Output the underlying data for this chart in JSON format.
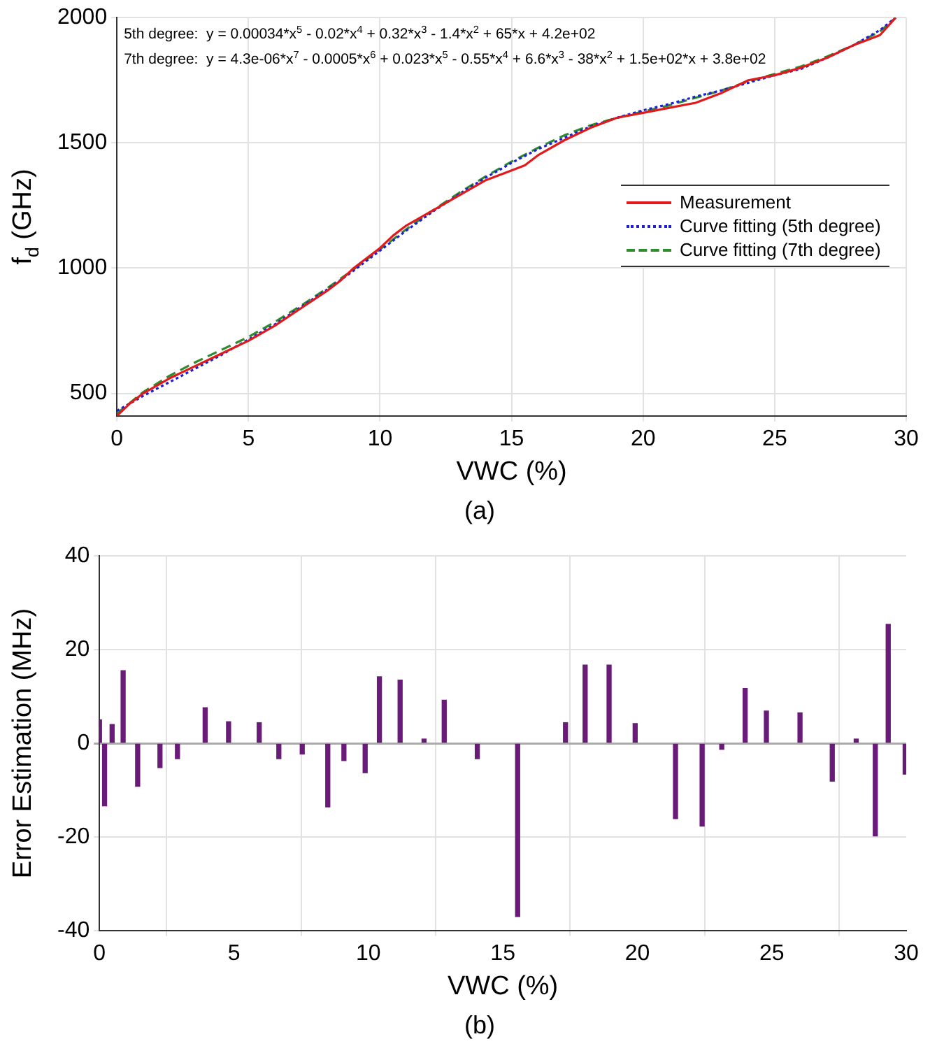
{
  "chart_data": [
    {
      "type": "line",
      "title": "(a)",
      "xlabel": "VWC (%)",
      "ylabel": "f$_{d}$ (GHz)",
      "xlim": [
        0,
        30
      ],
      "xticks": [
        0,
        5,
        10,
        15,
        20,
        25,
        30
      ],
      "ylim": [
        410,
        2000
      ],
      "yticks": [
        500,
        1000,
        1500,
        2000
      ],
      "grid": true,
      "legend": "right",
      "annotations": [
        "5th degree:  y = 0.00034*x$^{5}$ - 0.02*x$^{4}$ + 0.32*x$^{3}$ - 1.4*x$^{2}$ + 65*x + 4.2e+02",
        "7th degree:  y = 4.3e-06*x$^{7}$ - 0.0005*x$^{6}$ + 0.023*x$^{5}$ - 0.55*x$^{4}$ + 6.6*x$^{3}$ - 38*x$^{2}$ + 1.5e+02*x + 3.8e+02"
      ],
      "series": [
        {
          "name": "Measurement",
          "color": "#e31a1c",
          "line_style": "solid",
          "x": [
            0,
            0.5,
            1,
            2,
            3,
            4,
            5,
            6,
            7,
            8,
            8.5,
            9,
            10,
            10.5,
            11,
            12,
            13,
            14,
            15,
            15.5,
            16,
            17,
            18,
            19,
            20,
            21,
            22,
            23,
            24,
            25,
            26,
            27,
            28,
            28.5,
            29,
            29.6
          ],
          "values": [
            410,
            460,
            500,
            560,
            610,
            660,
            710,
            770,
            840,
            910,
            950,
            1000,
            1080,
            1130,
            1170,
            1230,
            1290,
            1350,
            1390,
            1410,
            1450,
            1510,
            1560,
            1600,
            1620,
            1640,
            1660,
            1700,
            1750,
            1770,
            1800,
            1840,
            1890,
            1910,
            1930,
            2000
          ]
        },
        {
          "name": "Curve fitting (5th degree)",
          "color": "#1f1fd6",
          "line_style": "dotted",
          "x": [
            0,
            1,
            2,
            3,
            4,
            5,
            6,
            7,
            8,
            9,
            10,
            11,
            12,
            13,
            14,
            15,
            16,
            17,
            18,
            19,
            20,
            21,
            22,
            23,
            24,
            25,
            26,
            27,
            28,
            29,
            29.6
          ],
          "values": [
            430,
            490,
            545,
            600,
            655,
            715,
            775,
            845,
            915,
            990,
            1070,
            1150,
            1225,
            1295,
            1360,
            1420,
            1475,
            1520,
            1565,
            1600,
            1630,
            1655,
            1685,
            1710,
            1740,
            1770,
            1795,
            1840,
            1890,
            1950,
            2000
          ]
        },
        {
          "name": "Curve fitting (7th degree)",
          "color": "#2e8b2e",
          "line_style": "dashed",
          "x": [
            0,
            1,
            2,
            3,
            4,
            5,
            6,
            7,
            8,
            9,
            10,
            11,
            12,
            13,
            14,
            15,
            16,
            17,
            18,
            19,
            20,
            21,
            22,
            23,
            24,
            25,
            26,
            27,
            28,
            29,
            29.6
          ],
          "values": [
            420,
            505,
            570,
            625,
            675,
            725,
            785,
            850,
            920,
            995,
            1075,
            1155,
            1230,
            1300,
            1365,
            1425,
            1480,
            1530,
            1570,
            1600,
            1625,
            1650,
            1680,
            1710,
            1745,
            1775,
            1805,
            1845,
            1890,
            1945,
            2000
          ]
        }
      ]
    },
    {
      "type": "bar",
      "title": "(b)",
      "xlabel": "VWC (%)",
      "ylabel": "Error Estimation (MHz)",
      "xlim": [
        0,
        30
      ],
      "xticks": [
        0,
        5,
        10,
        15,
        20,
        25,
        30
      ],
      "ylim": [
        -40,
        40
      ],
      "yticks": [
        -40,
        -20,
        0,
        20,
        40
      ],
      "grid": true,
      "color": "#6a1b7a",
      "x": [
        0,
        0.19,
        0.47,
        0.88,
        1.42,
        2.25,
        2.9,
        3.93,
        4.8,
        5.94,
        6.67,
        7.54,
        8.49,
        9.09,
        9.88,
        10.41,
        11.18,
        12.07,
        12.82,
        14.05,
        15.55,
        17.33,
        18.06,
        18.95,
        19.92,
        21.42,
        22.41,
        23.14,
        24.01,
        24.8,
        26.05,
        27.25,
        28.14,
        28.85,
        29.33,
        29.96
      ],
      "values": [
        5,
        -13.4,
        4,
        15.5,
        -9.2,
        -5.2,
        -3.3,
        7.6,
        4.6,
        4.4,
        -3.3,
        -2.3,
        -13.6,
        -3.7,
        -6.3,
        14.2,
        13.5,
        0.9,
        9.2,
        -3.3,
        -37,
        4.4,
        16.7,
        16.7,
        4.2,
        -16.1,
        -17.7,
        -1.3,
        11.7,
        6.9,
        6.5,
        -8.1,
        0.9,
        -19.8,
        25.4,
        -6.6
      ]
    }
  ]
}
